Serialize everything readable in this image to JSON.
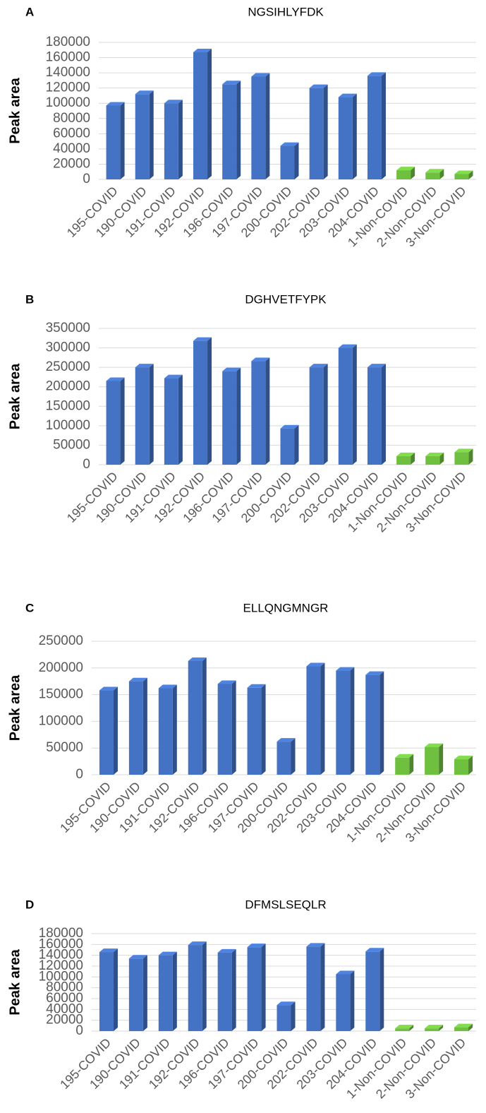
{
  "chart_data": [
    {
      "type": "bar3d",
      "panel": "A",
      "title": "NGSIHLYFDK",
      "ylabel": "Peak area",
      "categories": [
        "195-COVID",
        "190-COVID",
        "191-COVID",
        "192-COVID",
        "196-COVID",
        "197-COVID",
        "200-COVID",
        "202-COVID",
        "203-COVID",
        "204-COVID",
        "1-Non-COVID",
        "2-Non-COVID",
        "3-Non-COVID"
      ],
      "values": [
        97000,
        112000,
        100000,
        167000,
        125000,
        135000,
        44000,
        120000,
        108000,
        136000,
        12000,
        9000,
        7000
      ],
      "colors": [
        "#4472c4",
        "#4472c4",
        "#4472c4",
        "#4472c4",
        "#4472c4",
        "#4472c4",
        "#4472c4",
        "#4472c4",
        "#4472c4",
        "#4472c4",
        "#70c040",
        "#70c040",
        "#70c040"
      ],
      "ylim": [
        0,
        180000
      ],
      "yticks": [
        0,
        20000,
        40000,
        60000,
        80000,
        100000,
        120000,
        140000,
        160000,
        180000
      ],
      "grid": true
    },
    {
      "type": "bar3d",
      "panel": "B",
      "title": "DGHVETFYPK",
      "ylabel": "Peak area",
      "categories": [
        "195-COVID",
        "190-COVID",
        "191-COVID",
        "192-COVID",
        "196-COVID",
        "197-COVID",
        "200-COVID",
        "202-COVID",
        "203-COVID",
        "204-COVID",
        "1-Non-COVID",
        "2-Non-COVID",
        "3-Non-COVID"
      ],
      "values": [
        215000,
        250000,
        222000,
        318000,
        240000,
        266000,
        93000,
        250000,
        300000,
        250000,
        22000,
        22000,
        32000
      ],
      "colors": [
        "#4472c4",
        "#4472c4",
        "#4472c4",
        "#4472c4",
        "#4472c4",
        "#4472c4",
        "#4472c4",
        "#4472c4",
        "#4472c4",
        "#4472c4",
        "#70c040",
        "#70c040",
        "#70c040"
      ],
      "ylim": [
        0,
        350000
      ],
      "yticks": [
        0,
        50000,
        100000,
        150000,
        200000,
        250000,
        300000,
        350000
      ],
      "grid": true
    },
    {
      "type": "bar3d",
      "panel": "C",
      "title": "ELLQNGMNGR",
      "ylabel": "Peak area",
      "categories": [
        "195-COVID",
        "190-COVID",
        "191-COVID",
        "192-COVID",
        "196-COVID",
        "197-COVID",
        "200-COVID",
        "202-COVID",
        "203-COVID",
        "204-COVID",
        "1-Non-COVID",
        "2-Non-COVID",
        "3-Non-COVID"
      ],
      "values": [
        158000,
        175000,
        162000,
        213000,
        170000,
        163000,
        62000,
        203000,
        195000,
        187000,
        32000,
        52000,
        29000
      ],
      "colors": [
        "#4472c4",
        "#4472c4",
        "#4472c4",
        "#4472c4",
        "#4472c4",
        "#4472c4",
        "#4472c4",
        "#4472c4",
        "#4472c4",
        "#4472c4",
        "#70c040",
        "#70c040",
        "#70c040"
      ],
      "ylim": [
        0,
        250000
      ],
      "yticks": [
        0,
        50000,
        100000,
        150000,
        200000,
        250000
      ],
      "grid": true
    },
    {
      "type": "bar3d",
      "panel": "D",
      "title": "DFMSLSEQLR",
      "ylabel": "Peak area",
      "categories": [
        "195-COVID",
        "190-COVID",
        "191-COVID",
        "192-COVID",
        "196-COVID",
        "197-COVID",
        "200-COVID",
        "202-COVID",
        "203-COVID",
        "204-COVID",
        "1-Non-COVID",
        "2-Non-COVID",
        "3-Non-COVID"
      ],
      "values": [
        146000,
        134000,
        140000,
        159000,
        145000,
        155000,
        48000,
        156000,
        105000,
        147000,
        5000,
        5000,
        7000
      ],
      "colors": [
        "#4472c4",
        "#4472c4",
        "#4472c4",
        "#4472c4",
        "#4472c4",
        "#4472c4",
        "#4472c4",
        "#4472c4",
        "#4472c4",
        "#4472c4",
        "#70c040",
        "#70c040",
        "#70c040"
      ],
      "ylim": [
        0,
        180000
      ],
      "yticks": [
        0,
        20000,
        40000,
        60000,
        80000,
        100000,
        120000,
        140000,
        160000,
        180000
      ],
      "grid": true
    }
  ]
}
